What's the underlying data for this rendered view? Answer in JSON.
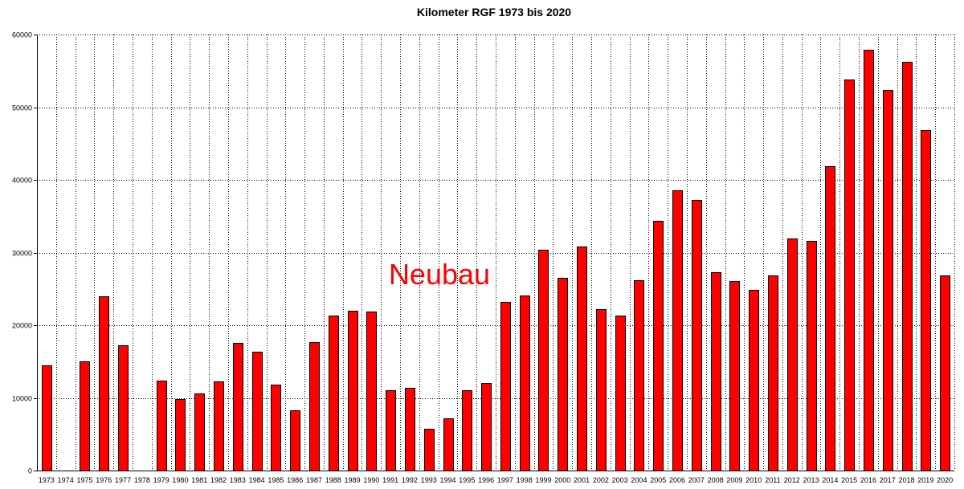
{
  "chart_data": {
    "type": "bar",
    "title": "Kilometer RGF 1973 bis 2020",
    "xlabel": "",
    "ylabel": "",
    "ylim": [
      0,
      60000
    ],
    "y_ticks": [
      "0",
      "10000",
      "20000",
      "30000",
      "40000",
      "50000",
      "60000"
    ],
    "grid": true,
    "categories": [
      "1973",
      "1974",
      "1975",
      "1976",
      "1977",
      "1978",
      "1979",
      "1980",
      "1981",
      "1982",
      "1983",
      "1984",
      "1985",
      "1986",
      "1987",
      "1988",
      "1989",
      "1990",
      "1991",
      "1992",
      "1993",
      "1994",
      "1995",
      "1996",
      "1997",
      "1998",
      "1999",
      "2000",
      "2001",
      "2002",
      "2003",
      "2004",
      "2005",
      "2006",
      "2007",
      "2008",
      "2009",
      "2010",
      "2011",
      "2012",
      "2013",
      "2014",
      "2015",
      "2016",
      "2017",
      "2018",
      "2019",
      "2020"
    ],
    "values": [
      14500,
      0,
      15000,
      24000,
      17200,
      0,
      12400,
      9800,
      10600,
      12300,
      17600,
      16300,
      11800,
      8300,
      17700,
      21300,
      22000,
      21900,
      11000,
      11400,
      5800,
      7200,
      11000,
      12000,
      23200,
      24100,
      30400,
      26500,
      30800,
      22200,
      21300,
      26200,
      34400,
      38600,
      37200,
      27300,
      26100,
      24900,
      26900,
      31900,
      31600,
      41900,
      53800,
      57900,
      52400,
      56200,
      46900,
      26800
    ],
    "bar_color": "#ff0000",
    "annotations": [
      {
        "text": "Neubau",
        "color": "#ff0000"
      }
    ]
  }
}
